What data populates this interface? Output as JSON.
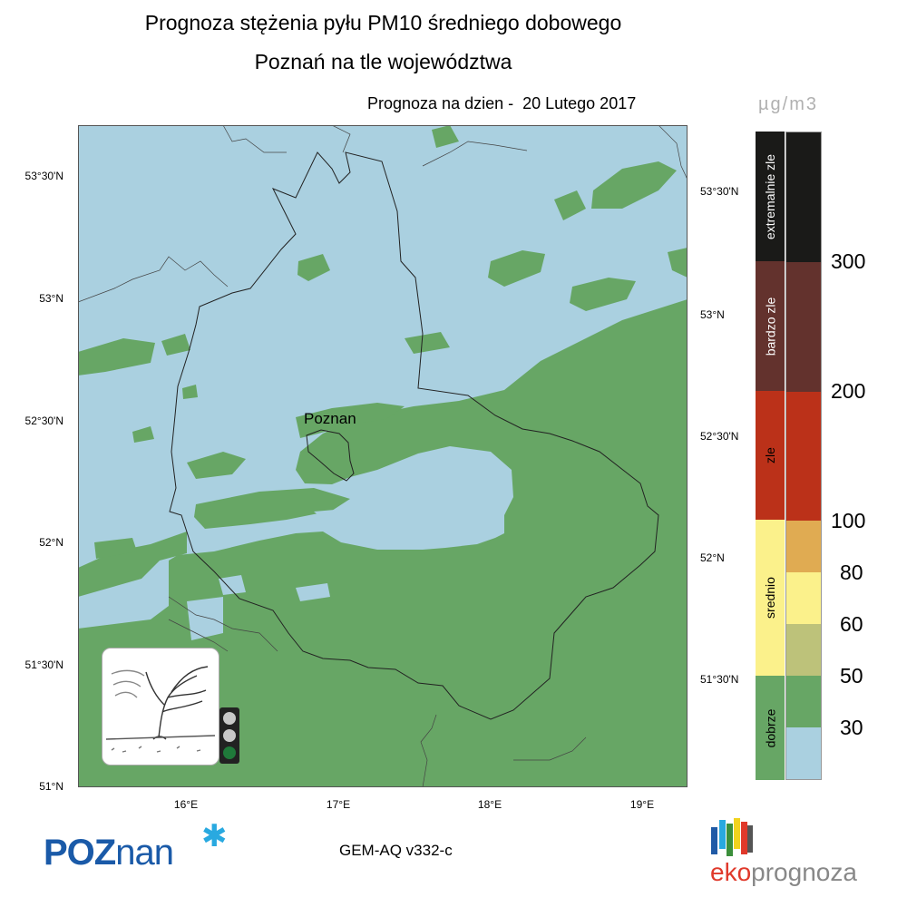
{
  "header": {
    "title_line1": "Prognoza stężenia pyłu PM10 średniego dobowego",
    "title_line2": "Poznań na tle województwa",
    "forecast_date": "Prognoza na dzien -  20 Lutego 2017"
  },
  "map": {
    "city_label": "Poznan",
    "lat_labels_left": [
      "53°30'N",
      "53°N",
      "52°30'N",
      "52°N",
      "51°30'N",
      "51°N"
    ],
    "lat_labels_right": [
      "53°30'N",
      "53°N",
      "52°30'N",
      "52°N",
      "51°30'N"
    ],
    "lon_labels": [
      "16°E",
      "17°E",
      "18°E",
      "19°E"
    ],
    "colors": {
      "water_background": "#aad0e0",
      "good_zone": "#67a665",
      "border": "#333333"
    },
    "air_quality_signal": "green"
  },
  "legend": {
    "unit": "µg/m3",
    "categories": [
      {
        "label": "extremalnie zle",
        "color": "#1a1a18"
      },
      {
        "label": "bardzo zle",
        "color": "#63322d"
      },
      {
        "label": "zle",
        "color": "#bb3119"
      },
      {
        "label": "srednio",
        "color": "#fbf18b"
      },
      {
        "label": "dobrze",
        "color": "#67a665"
      }
    ],
    "scale_colors": [
      "#1a1a18",
      "#63322d",
      "#bb3119",
      "#e0ab52",
      "#fbf18b",
      "#bdc27a",
      "#67a665",
      "#aad0e0"
    ],
    "ticks": [
      "300",
      "200",
      "100",
      "80",
      "60",
      "50",
      "30"
    ]
  },
  "footer": {
    "city_logo_main": "POZ",
    "city_logo_tail": "nan",
    "model": "GEM-AQ v332-c",
    "brand_part1": "eko",
    "brand_part2": "prognoza",
    "brand_bar_colors": [
      "#1f5aa6",
      "#29a9e0",
      "#3c8f3c",
      "#f1d31e",
      "#e0392b",
      "#555555"
    ]
  }
}
